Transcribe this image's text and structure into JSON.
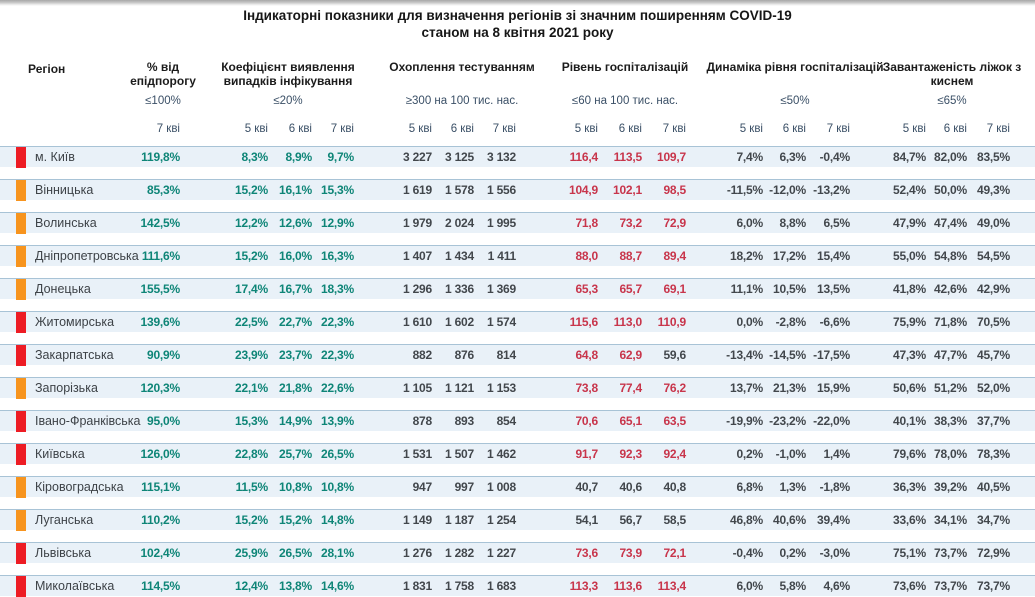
{
  "title": {
    "line1": "Індикаторні показники для визначення регіонів зі значним поширенням COVID-19",
    "line2": "станом на 8 квітня 2021 року"
  },
  "columns": {
    "region_label": "Регіон",
    "groups": [
      {
        "title": "% від епідпорогу",
        "threshold": "≤100%",
        "dates": [
          "7 кві"
        ]
      },
      {
        "title": "Коефіцієнт виявлення випадків інфікування",
        "threshold": "≤20%",
        "dates": [
          "5 кві",
          "6 кві",
          "7 кві"
        ]
      },
      {
        "title": "Охоплення тестуванням",
        "threshold": "≥300 на 100 тис. нас.",
        "dates": [
          "5 кві",
          "6 кві",
          "7 кві"
        ]
      },
      {
        "title": "Рівень госпіталізацій",
        "threshold": "≤60 на 100 тис. нас.",
        "dates": [
          "5 кві",
          "6 кві",
          "7 кві"
        ]
      },
      {
        "title": "Динаміка рівня госпіталізацій",
        "threshold": "≤50%",
        "dates": [
          "5 кві",
          "6 кві",
          "7 кві"
        ]
      },
      {
        "title": "Завантаженість ліжок з киснем",
        "threshold": "≤65%",
        "dates": [
          "5 кві",
          "6 кві",
          "7 кві"
        ]
      }
    ]
  },
  "hosp_threshold_value": 60,
  "rows": [
    {
      "region": "м. Київ",
      "marker": "red",
      "epid": "119,8%",
      "koef": [
        "8,3%",
        "8,9%",
        "9,7%"
      ],
      "test": [
        "3 227",
        "3 125",
        "3 132"
      ],
      "hosp": [
        "116,4",
        "113,5",
        "109,7"
      ],
      "dyn": [
        "7,4%",
        "6,3%",
        "-0,4%"
      ],
      "bed": [
        "84,7%",
        "82,0%",
        "83,5%"
      ]
    },
    {
      "region": "Вінницька",
      "marker": "orange",
      "epid": "85,3%",
      "koef": [
        "15,2%",
        "16,1%",
        "15,3%"
      ],
      "test": [
        "1 619",
        "1 578",
        "1 556"
      ],
      "hosp": [
        "104,9",
        "102,1",
        "98,5"
      ],
      "dyn": [
        "-11,5%",
        "-12,0%",
        "-13,2%"
      ],
      "bed": [
        "52,4%",
        "50,0%",
        "49,3%"
      ]
    },
    {
      "region": "Волинська",
      "marker": "orange",
      "epid": "142,5%",
      "koef": [
        "12,2%",
        "12,6%",
        "12,9%"
      ],
      "test": [
        "1 979",
        "2 024",
        "1 995"
      ],
      "hosp": [
        "71,8",
        "73,2",
        "72,9"
      ],
      "dyn": [
        "6,0%",
        "8,8%",
        "6,5%"
      ],
      "bed": [
        "47,9%",
        "47,4%",
        "49,0%"
      ]
    },
    {
      "region": "Дніпропетровська",
      "marker": "orange",
      "epid": "111,6%",
      "koef": [
        "15,2%",
        "16,0%",
        "16,3%"
      ],
      "test": [
        "1 407",
        "1 434",
        "1 411"
      ],
      "hosp": [
        "88,0",
        "88,7",
        "89,4"
      ],
      "dyn": [
        "18,2%",
        "17,2%",
        "15,4%"
      ],
      "bed": [
        "55,0%",
        "54,8%",
        "54,5%"
      ]
    },
    {
      "region": "Донецька",
      "marker": "orange",
      "epid": "155,5%",
      "koef": [
        "17,4%",
        "16,7%",
        "18,3%"
      ],
      "test": [
        "1 296",
        "1 336",
        "1 369"
      ],
      "hosp": [
        "65,3",
        "65,7",
        "69,1"
      ],
      "dyn": [
        "11,1%",
        "10,5%",
        "13,5%"
      ],
      "bed": [
        "41,8%",
        "42,6%",
        "42,9%"
      ]
    },
    {
      "region": "Житомирська",
      "marker": "red",
      "epid": "139,6%",
      "koef": [
        "22,5%",
        "22,7%",
        "22,3%"
      ],
      "test": [
        "1 610",
        "1 602",
        "1 574"
      ],
      "hosp": [
        "115,6",
        "113,0",
        "110,9"
      ],
      "dyn": [
        "0,0%",
        "-2,8%",
        "-6,6%"
      ],
      "bed": [
        "75,9%",
        "71,8%",
        "70,5%"
      ]
    },
    {
      "region": "Закарпатська",
      "marker": "red",
      "epid": "90,9%",
      "koef": [
        "23,9%",
        "23,7%",
        "22,3%"
      ],
      "test": [
        "882",
        "876",
        "814"
      ],
      "hosp": [
        "64,8",
        "62,9",
        "59,6"
      ],
      "dyn": [
        "-13,4%",
        "-14,5%",
        "-17,5%"
      ],
      "bed": [
        "47,3%",
        "47,7%",
        "45,7%"
      ]
    },
    {
      "region": "Запорізька",
      "marker": "orange",
      "epid": "120,3%",
      "koef": [
        "22,1%",
        "21,8%",
        "22,6%"
      ],
      "test": [
        "1 105",
        "1 121",
        "1 153"
      ],
      "hosp": [
        "73,8",
        "77,4",
        "76,2"
      ],
      "dyn": [
        "13,7%",
        "21,3%",
        "15,9%"
      ],
      "bed": [
        "50,6%",
        "51,2%",
        "52,0%"
      ]
    },
    {
      "region": "Івано-Франківська",
      "marker": "red",
      "epid": "95,0%",
      "koef": [
        "15,3%",
        "14,9%",
        "13,9%"
      ],
      "test": [
        "878",
        "893",
        "854"
      ],
      "hosp": [
        "70,6",
        "65,1",
        "63,5"
      ],
      "dyn": [
        "-19,9%",
        "-23,2%",
        "-22,0%"
      ],
      "bed": [
        "40,1%",
        "38,3%",
        "37,7%"
      ]
    },
    {
      "region": "Київська",
      "marker": "red",
      "epid": "126,0%",
      "koef": [
        "22,8%",
        "25,7%",
        "26,5%"
      ],
      "test": [
        "1 531",
        "1 507",
        "1 462"
      ],
      "hosp": [
        "91,7",
        "92,3",
        "92,4"
      ],
      "dyn": [
        "0,2%",
        "-1,0%",
        "1,4%"
      ],
      "bed": [
        "79,6%",
        "78,0%",
        "78,3%"
      ]
    },
    {
      "region": "Кіровоградська",
      "marker": "orange",
      "epid": "115,1%",
      "koef": [
        "11,5%",
        "10,8%",
        "10,8%"
      ],
      "test": [
        "947",
        "997",
        "1 008"
      ],
      "hosp": [
        "40,7",
        "40,6",
        "40,8"
      ],
      "dyn": [
        "6,8%",
        "1,3%",
        "-1,8%"
      ],
      "bed": [
        "36,3%",
        "39,2%",
        "40,5%"
      ]
    },
    {
      "region": "Луганська",
      "marker": "orange",
      "epid": "110,2%",
      "koef": [
        "15,2%",
        "15,2%",
        "14,8%"
      ],
      "test": [
        "1 149",
        "1 187",
        "1 254"
      ],
      "hosp": [
        "54,1",
        "56,7",
        "58,5"
      ],
      "dyn": [
        "46,8%",
        "40,6%",
        "39,4%"
      ],
      "bed": [
        "33,6%",
        "34,1%",
        "34,7%"
      ]
    },
    {
      "region": "Львівська",
      "marker": "red",
      "epid": "102,4%",
      "koef": [
        "25,9%",
        "26,5%",
        "28,1%"
      ],
      "test": [
        "1 276",
        "1 282",
        "1 227"
      ],
      "hosp": [
        "73,6",
        "73,9",
        "72,1"
      ],
      "dyn": [
        "-0,4%",
        "0,2%",
        "-3,0%"
      ],
      "bed": [
        "75,1%",
        "73,7%",
        "72,9%"
      ]
    },
    {
      "region": "Миколаївська",
      "marker": "red",
      "epid": "114,5%",
      "koef": [
        "12,4%",
        "13,8%",
        "14,6%"
      ],
      "test": [
        "1 831",
        "1 758",
        "1 683"
      ],
      "hosp": [
        "113,3",
        "113,6",
        "113,4"
      ],
      "dyn": [
        "6,0%",
        "5,8%",
        "4,6%"
      ],
      "bed": [
        "73,6%",
        "73,7%",
        "73,7%"
      ]
    }
  ],
  "colors": {
    "marker_red": "#ed1c24",
    "marker_orange": "#f7941e",
    "value_teal": "#0e8577",
    "value_red": "#c8354b",
    "value_dark": "#42474c",
    "header_navy": "#3a4f66",
    "row_bg": "#e9f1f8",
    "row_border": "#a8c3d6"
  }
}
